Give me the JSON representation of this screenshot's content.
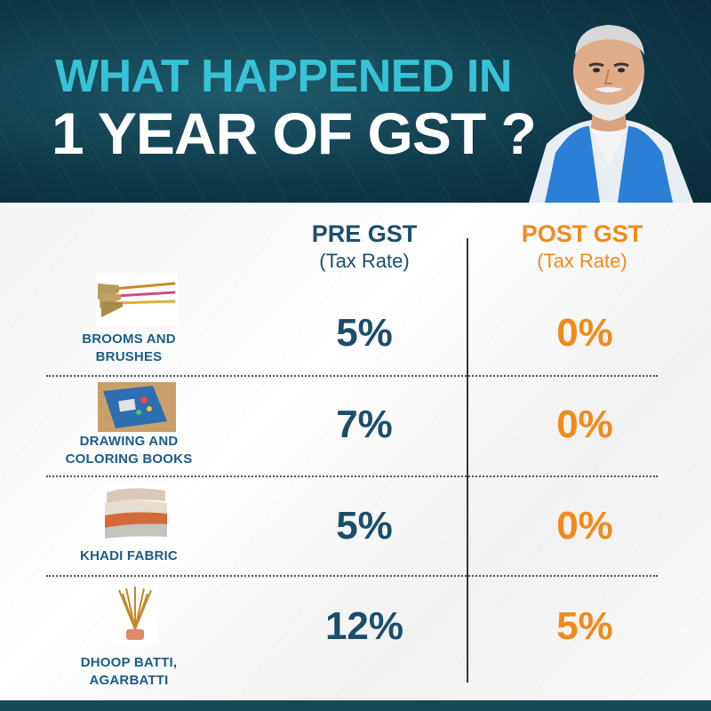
{
  "header": {
    "title_line1": "WHAT HAPPENED IN",
    "title_line2": "1 YEAR OF GST ?"
  },
  "columns": {
    "pre": {
      "title": "PRE GST",
      "subtitle": "(Tax Rate)"
    },
    "post": {
      "title": "POST GST",
      "subtitle": "(Tax Rate)"
    }
  },
  "rows": [
    {
      "label_line1": "BROOMS AND",
      "label_line2": "BRUSHES",
      "pre": "5%",
      "post": "0%",
      "icon": "broom-icon"
    },
    {
      "label_line1": "DRAWING AND",
      "label_line2": "COLORING BOOKS",
      "pre": "7%",
      "post": "0%",
      "icon": "book-icon"
    },
    {
      "label_line1": "KHADI FABRIC",
      "label_line2": "",
      "pre": "5%",
      "post": "0%",
      "icon": "fabric-icon"
    },
    {
      "label_line1": "DHOOP BATTI,",
      "label_line2": "AGARBATTI",
      "pre": "12%",
      "post": "5%",
      "icon": "incense-icon"
    }
  ],
  "colors": {
    "header_bg": "#0f3a4a",
    "title_accent": "#37c3d4",
    "pre_color": "#1b4e6b",
    "post_color": "#f28a1a",
    "label_color": "#1b5d88"
  }
}
